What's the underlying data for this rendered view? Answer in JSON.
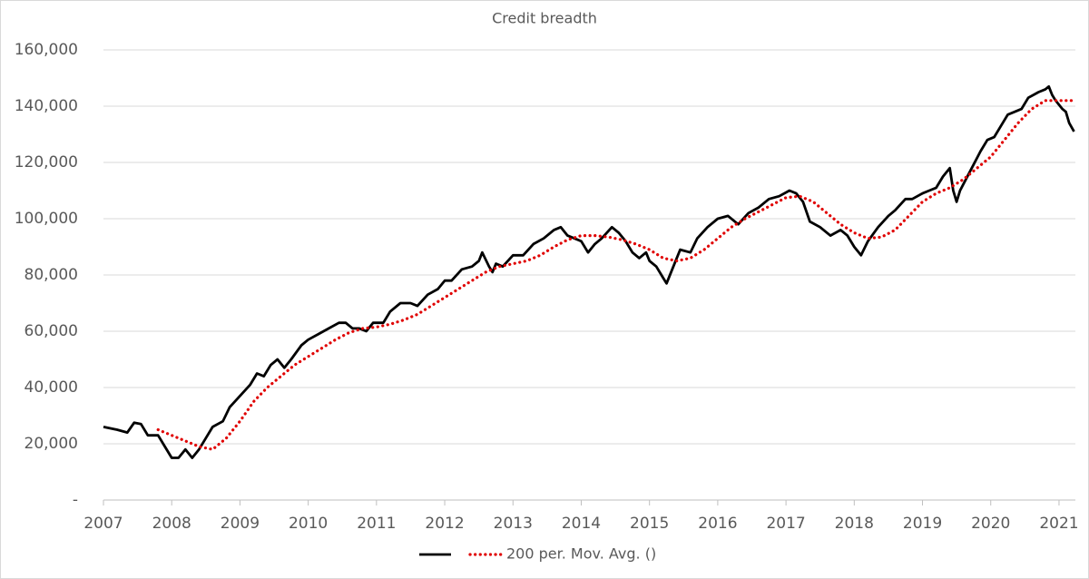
{
  "chart_data": {
    "type": "line",
    "title": "Credit breadth",
    "xlim": [
      2007,
      2021.24
    ],
    "xticks": [
      2007,
      2008,
      2009,
      2010,
      2011,
      2012,
      2013,
      2014,
      2015,
      2016,
      2017,
      2018,
      2019,
      2020,
      2021
    ],
    "ylim": [
      0,
      160000
    ],
    "yticks": [
      {
        "value": 0,
        "label": "-"
      },
      {
        "value": 20000,
        "label": "20,000"
      },
      {
        "value": 40000,
        "label": "40,000"
      },
      {
        "value": 60000,
        "label": "60,000"
      },
      {
        "value": 80000,
        "label": "80,000"
      },
      {
        "value": 100000,
        "label": "100,000"
      },
      {
        "value": 120000,
        "label": "120,000"
      },
      {
        "value": 140000,
        "label": "140,000"
      },
      {
        "value": 160000,
        "label": "160,000"
      }
    ],
    "grid": true,
    "legend": "bottom",
    "series": [
      {
        "color": "#000000",
        "style": "solid",
        "x": [
          2007.0,
          2007.2,
          2007.35,
          2007.45,
          2007.55,
          2007.65,
          2007.8,
          2007.9,
          2008.0,
          2008.1,
          2008.2,
          2008.3,
          2008.4,
          2008.5,
          2008.6,
          2008.75,
          2008.85,
          2009.0,
          2009.15,
          2009.25,
          2009.35,
          2009.45,
          2009.55,
          2009.65,
          2009.75,
          2009.9,
          2010.0,
          2010.15,
          2010.3,
          2010.45,
          2010.55,
          2010.65,
          2010.75,
          2010.85,
          2010.95,
          2011.1,
          2011.2,
          2011.35,
          2011.5,
          2011.6,
          2011.75,
          2011.9,
          2012.0,
          2012.1,
          2012.25,
          2012.4,
          2012.5,
          2012.55,
          2012.65,
          2012.7,
          2012.75,
          2012.85,
          2013.0,
          2013.15,
          2013.3,
          2013.45,
          2013.6,
          2013.7,
          2013.8,
          2013.9,
          2014.0,
          2014.1,
          2014.2,
          2014.3,
          2014.45,
          2014.55,
          2014.65,
          2014.75,
          2014.85,
          2014.95,
          2015.0,
          2015.1,
          2015.2,
          2015.25,
          2015.35,
          2015.45,
          2015.6,
          2015.7,
          2015.85,
          2016.0,
          2016.15,
          2016.3,
          2016.45,
          2016.6,
          2016.75,
          2016.9,
          2017.05,
          2017.15,
          2017.25,
          2017.35,
          2017.5,
          2017.65,
          2017.8,
          2017.9,
          2018.0,
          2018.1,
          2018.2,
          2018.35,
          2018.5,
          2018.6,
          2018.75,
          2018.85,
          2019.0,
          2019.1,
          2019.2,
          2019.3,
          2019.4,
          2019.45,
          2019.5,
          2019.55,
          2019.7,
          2019.85,
          2019.95,
          2020.05,
          2020.15,
          2020.25,
          2020.35,
          2020.45,
          2020.55,
          2020.7,
          2020.8,
          2020.85,
          2020.9,
          2020.95,
          2021.05,
          2021.1,
          2021.15,
          2021.22
        ],
        "values": [
          26000,
          25000,
          24000,
          27500,
          27000,
          23000,
          23000,
          19000,
          15000,
          15000,
          18000,
          15000,
          18000,
          22000,
          26000,
          28000,
          33000,
          37000,
          41000,
          45000,
          44000,
          48000,
          50000,
          47000,
          50000,
          55000,
          57000,
          59000,
          61000,
          63000,
          63000,
          61000,
          61000,
          60000,
          63000,
          63000,
          67000,
          70000,
          70000,
          69000,
          73000,
          75000,
          78000,
          78000,
          82000,
          83000,
          85000,
          88000,
          83000,
          81000,
          84000,
          83000,
          87000,
          87000,
          91000,
          93000,
          96000,
          97000,
          94000,
          93000,
          92000,
          88000,
          91000,
          93000,
          97000,
          95000,
          92000,
          88000,
          86000,
          88000,
          85000,
          83000,
          79000,
          77000,
          83000,
          89000,
          88000,
          93000,
          97000,
          100000,
          101000,
          98000,
          102000,
          104000,
          107000,
          108000,
          110000,
          109000,
          106000,
          99000,
          97000,
          94000,
          96000,
          94000,
          90000,
          87000,
          92000,
          97000,
          101000,
          103000,
          107000,
          107000,
          109000,
          110000,
          111000,
          115000,
          118000,
          110000,
          106000,
          110000,
          117000,
          124000,
          128000,
          129000,
          133000,
          137000,
          138000,
          139000,
          143000,
          145000,
          146000,
          147000,
          144000,
          142000,
          139000,
          138000,
          134000,
          131000
        ]
      },
      {
        "name": "200 per. Mov. Avg. ()",
        "color": "#e00000",
        "style": "dotted",
        "x": [
          2007.8,
          2008.0,
          2008.2,
          2008.4,
          2008.6,
          2008.8,
          2009.0,
          2009.2,
          2009.4,
          2009.6,
          2009.8,
          2010.0,
          2010.2,
          2010.4,
          2010.6,
          2010.8,
          2011.0,
          2011.2,
          2011.4,
          2011.6,
          2011.8,
          2012.0,
          2012.2,
          2012.4,
          2012.6,
          2012.8,
          2013.0,
          2013.2,
          2013.4,
          2013.6,
          2013.8,
          2014.0,
          2014.2,
          2014.4,
          2014.6,
          2014.8,
          2015.0,
          2015.2,
          2015.4,
          2015.6,
          2015.8,
          2016.0,
          2016.2,
          2016.4,
          2016.6,
          2016.8,
          2017.0,
          2017.2,
          2017.4,
          2017.6,
          2017.8,
          2018.0,
          2018.2,
          2018.4,
          2018.6,
          2018.8,
          2019.0,
          2019.2,
          2019.4,
          2019.6,
          2019.8,
          2020.0,
          2020.2,
          2020.4,
          2020.6,
          2020.8,
          2021.0,
          2021.2
        ],
        "values": [
          25000,
          23000,
          21000,
          19000,
          18000,
          22000,
          28000,
          35000,
          40000,
          44000,
          48000,
          51000,
          54000,
          57000,
          59500,
          61000,
          61500,
          62500,
          64000,
          66000,
          69000,
          72000,
          75000,
          78000,
          81000,
          83000,
          84000,
          85000,
          87000,
          90000,
          92500,
          94000,
          94000,
          93500,
          92500,
          91000,
          89000,
          86000,
          85000,
          86000,
          89000,
          93000,
          97000,
          100000,
          102500,
          105000,
          107500,
          108000,
          106000,
          102000,
          98000,
          95000,
          93000,
          93500,
          96000,
          101000,
          106000,
          109000,
          111000,
          114000,
          118000,
          122000,
          128000,
          134000,
          139000,
          142000,
          142000,
          142000
        ]
      }
    ]
  }
}
